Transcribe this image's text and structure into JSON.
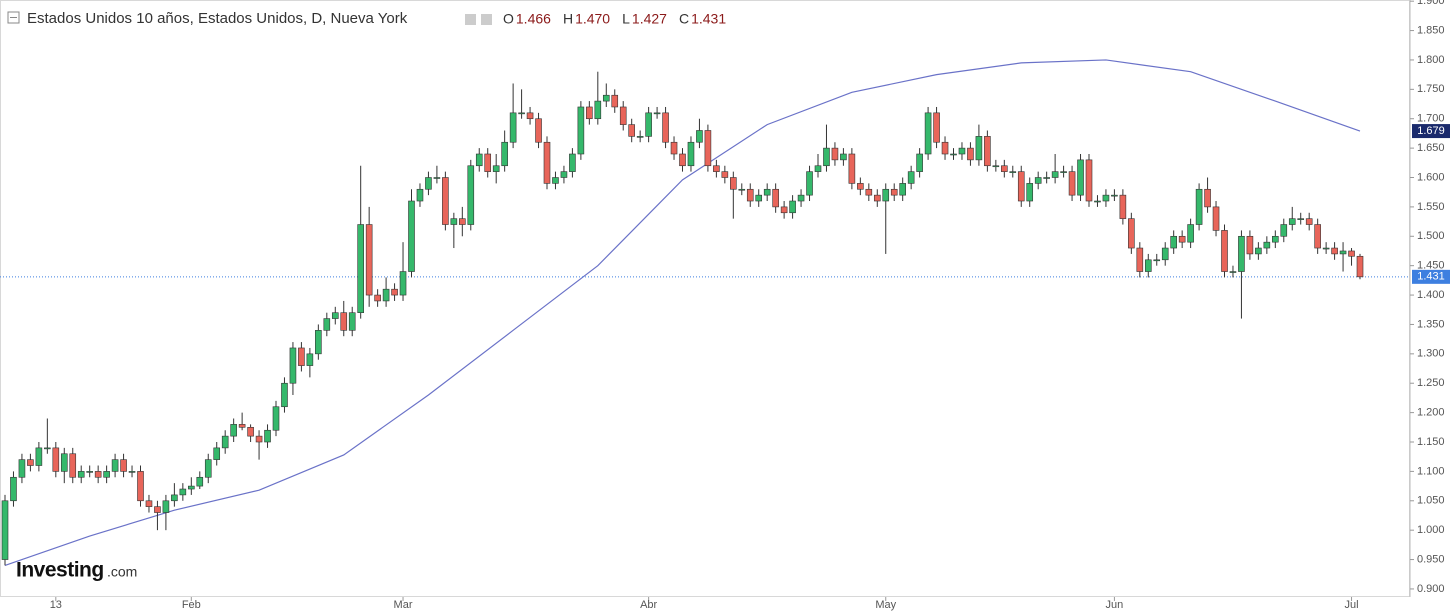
{
  "chart_data": {
    "type": "candlestick",
    "title": "Estados Unidos 10 años, Estados Unidos, D, Nueva York",
    "legend_keys": [
      "O",
      "H",
      "L",
      "C"
    ],
    "legend_values": [
      "1.466",
      "1.470",
      "1.427",
      "1.431"
    ],
    "watermark": "Investing",
    "watermark_suffix": ".com",
    "up_color": "#35b86b",
    "down_color": "#e8655a",
    "ylim": [
      0.888,
      1.902
    ],
    "yticks": [
      {
        "value": 0.9,
        "label": "0.900"
      },
      {
        "value": 0.95,
        "label": "0.950"
      },
      {
        "value": 1.0,
        "label": "1.000"
      },
      {
        "value": 1.05,
        "label": "1.050"
      },
      {
        "value": 1.1,
        "label": "1.100"
      },
      {
        "value": 1.15,
        "label": "1.150"
      },
      {
        "value": 1.2,
        "label": "1.200"
      },
      {
        "value": 1.25,
        "label": "1.250"
      },
      {
        "value": 1.3,
        "label": "1.300"
      },
      {
        "value": 1.35,
        "label": "1.350"
      },
      {
        "value": 1.4,
        "label": "1.400"
      },
      {
        "value": 1.45,
        "label": "1.450"
      },
      {
        "value": 1.5,
        "label": "1.500"
      },
      {
        "value": 1.55,
        "label": "1.550"
      },
      {
        "value": 1.6,
        "label": "1.600"
      },
      {
        "value": 1.65,
        "label": "1.650"
      },
      {
        "value": 1.7,
        "label": "1.700"
      },
      {
        "value": 1.75,
        "label": "1.750"
      },
      {
        "value": 1.8,
        "label": "1.800"
      },
      {
        "value": 1.85,
        "label": "1.850"
      },
      {
        "value": 1.9,
        "label": "1.900"
      }
    ],
    "categories": [
      null,
      null,
      null,
      null,
      null,
      null,
      "13",
      null,
      null,
      null,
      null,
      null,
      null,
      null,
      null,
      null,
      null,
      null,
      null,
      null,
      null,
      null,
      "Feb",
      null,
      null,
      null,
      null,
      null,
      null,
      null,
      null,
      null,
      null,
      null,
      null,
      null,
      null,
      null,
      null,
      null,
      null,
      null,
      null,
      null,
      null,
      null,
      null,
      "Mar",
      null,
      null,
      null,
      null,
      null,
      null,
      null,
      null,
      null,
      null,
      null,
      null,
      null,
      null,
      null,
      null,
      null,
      null,
      null,
      null,
      null,
      null,
      null,
      null,
      null,
      null,
      null,
      null,
      "Abr",
      null,
      null,
      null,
      null,
      null,
      null,
      null,
      null,
      null,
      null,
      null,
      null,
      null,
      null,
      null,
      null,
      null,
      null,
      null,
      null,
      null,
      null,
      null,
      null,
      null,
      null,
      null,
      "May",
      null,
      null,
      null,
      null,
      null,
      null,
      null,
      null,
      null,
      null,
      null,
      null,
      null,
      null,
      null,
      null,
      null,
      null,
      null,
      null,
      null,
      null,
      null,
      null,
      null,
      null,
      "Jun",
      null,
      null,
      null,
      null,
      null,
      null,
      null,
      null,
      null,
      null,
      null,
      null,
      null,
      null,
      null,
      null,
      null,
      null,
      null,
      null,
      null,
      null,
      null,
      null,
      null,
      null,
      null,
      "Jul",
      null
    ],
    "open": [
      0.95,
      1.05,
      1.09,
      1.12,
      1.11,
      1.14,
      1.14,
      1.1,
      1.13,
      1.09,
      1.1,
      1.1,
      1.09,
      1.1,
      1.12,
      1.1,
      1.1,
      1.05,
      1.04,
      1.03,
      1.05,
      1.06,
      1.07,
      1.075,
      1.09,
      1.12,
      1.14,
      1.16,
      1.18,
      1.175,
      1.16,
      1.15,
      1.17,
      1.21,
      1.25,
      1.31,
      1.28,
      1.3,
      1.34,
      1.36,
      1.37,
      1.34,
      1.37,
      1.52,
      1.4,
      1.39,
      1.41,
      1.4,
      1.44,
      1.56,
      1.58,
      1.6,
      1.6,
      1.52,
      1.53,
      1.52,
      1.62,
      1.64,
      1.61,
      1.62,
      1.66,
      1.71,
      1.71,
      1.7,
      1.66,
      1.59,
      1.6,
      1.61,
      1.64,
      1.72,
      1.7,
      1.73,
      1.74,
      1.72,
      1.69,
      1.67,
      1.67,
      1.71,
      1.71,
      1.66,
      1.64,
      1.62,
      1.66,
      1.68,
      1.62,
      1.61,
      1.6,
      1.58,
      1.58,
      1.56,
      1.57,
      1.58,
      1.55,
      1.54,
      1.56,
      1.57,
      1.61,
      1.62,
      1.65,
      1.63,
      1.64,
      1.59,
      1.58,
      1.57,
      1.56,
      1.58,
      1.57,
      1.59,
      1.61,
      1.64,
      1.71,
      1.66,
      1.64,
      1.64,
      1.65,
      1.63,
      1.67,
      1.62,
      1.62,
      1.61,
      1.61,
      1.56,
      1.59,
      1.6,
      1.6,
      1.61,
      1.61,
      1.57,
      1.63,
      1.56,
      1.56,
      1.57,
      1.57,
      1.53,
      1.48,
      1.44,
      1.46,
      1.46,
      1.48,
      1.5,
      1.49,
      1.52,
      1.58,
      1.55,
      1.51,
      1.44,
      1.44,
      1.5,
      1.47,
      1.48,
      1.49,
      1.5,
      1.52,
      1.53,
      1.53,
      1.52,
      1.48,
      1.48,
      1.47,
      1.475,
      1.466
    ],
    "high": [
      1.06,
      1.1,
      1.13,
      1.13,
      1.15,
      1.19,
      1.15,
      1.14,
      1.14,
      1.11,
      1.11,
      1.11,
      1.11,
      1.13,
      1.13,
      1.11,
      1.11,
      1.06,
      1.05,
      1.06,
      1.08,
      1.08,
      1.09,
      1.1,
      1.13,
      1.15,
      1.17,
      1.19,
      1.2,
      1.18,
      1.17,
      1.18,
      1.22,
      1.26,
      1.32,
      1.32,
      1.31,
      1.35,
      1.37,
      1.38,
      1.39,
      1.38,
      1.62,
      1.55,
      1.41,
      1.43,
      1.42,
      1.49,
      1.58,
      1.59,
      1.61,
      1.62,
      1.61,
      1.54,
      1.55,
      1.63,
      1.65,
      1.65,
      1.64,
      1.68,
      1.76,
      1.75,
      1.72,
      1.71,
      1.67,
      1.61,
      1.62,
      1.65,
      1.73,
      1.73,
      1.78,
      1.76,
      1.75,
      1.73,
      1.7,
      1.68,
      1.72,
      1.72,
      1.72,
      1.67,
      1.65,
      1.67,
      1.7,
      1.69,
      1.63,
      1.62,
      1.61,
      1.59,
      1.59,
      1.58,
      1.59,
      1.59,
      1.56,
      1.57,
      1.58,
      1.62,
      1.64,
      1.69,
      1.66,
      1.65,
      1.65,
      1.6,
      1.59,
      1.58,
      1.59,
      1.59,
      1.6,
      1.62,
      1.65,
      1.72,
      1.72,
      1.67,
      1.65,
      1.66,
      1.66,
      1.69,
      1.68,
      1.63,
      1.63,
      1.62,
      1.62,
      1.6,
      1.61,
      1.61,
      1.64,
      1.62,
      1.62,
      1.64,
      1.64,
      1.57,
      1.58,
      1.58,
      1.58,
      1.54,
      1.49,
      1.47,
      1.47,
      1.49,
      1.51,
      1.51,
      1.53,
      1.59,
      1.6,
      1.56,
      1.52,
      1.45,
      1.51,
      1.51,
      1.49,
      1.5,
      1.51,
      1.53,
      1.55,
      1.54,
      1.54,
      1.53,
      1.49,
      1.49,
      1.49,
      1.48,
      1.47
    ],
    "low": [
      0.94,
      1.04,
      1.08,
      1.1,
      1.1,
      1.13,
      1.09,
      1.08,
      1.08,
      1.08,
      1.09,
      1.08,
      1.08,
      1.09,
      1.09,
      1.09,
      1.04,
      1.03,
      1.0,
      1.0,
      1.04,
      1.05,
      1.06,
      1.07,
      1.08,
      1.11,
      1.13,
      1.15,
      1.17,
      1.15,
      1.12,
      1.14,
      1.16,
      1.2,
      1.23,
      1.27,
      1.26,
      1.29,
      1.33,
      1.35,
      1.33,
      1.33,
      1.36,
      1.38,
      1.38,
      1.38,
      1.39,
      1.39,
      1.43,
      1.55,
      1.57,
      1.59,
      1.51,
      1.48,
      1.5,
      1.51,
      1.61,
      1.6,
      1.59,
      1.61,
      1.65,
      1.7,
      1.69,
      1.65,
      1.58,
      1.58,
      1.59,
      1.6,
      1.63,
      1.69,
      1.69,
      1.72,
      1.71,
      1.68,
      1.66,
      1.66,
      1.66,
      1.7,
      1.65,
      1.63,
      1.61,
      1.61,
      1.65,
      1.61,
      1.6,
      1.59,
      1.53,
      1.57,
      1.55,
      1.55,
      1.56,
      1.54,
      1.53,
      1.53,
      1.55,
      1.56,
      1.6,
      1.61,
      1.62,
      1.62,
      1.58,
      1.57,
      1.56,
      1.55,
      1.47,
      1.56,
      1.56,
      1.58,
      1.6,
      1.63,
      1.65,
      1.63,
      1.63,
      1.63,
      1.62,
      1.62,
      1.61,
      1.61,
      1.6,
      1.6,
      1.55,
      1.55,
      1.58,
      1.59,
      1.59,
      1.6,
      1.56,
      1.56,
      1.55,
      1.55,
      1.55,
      1.56,
      1.52,
      1.47,
      1.43,
      1.43,
      1.45,
      1.45,
      1.47,
      1.48,
      1.48,
      1.51,
      1.54,
      1.5,
      1.43,
      1.43,
      1.36,
      1.46,
      1.46,
      1.47,
      1.48,
      1.49,
      1.51,
      1.52,
      1.51,
      1.47,
      1.47,
      1.46,
      1.44,
      1.45,
      1.427
    ],
    "close": [
      1.05,
      1.09,
      1.12,
      1.11,
      1.14,
      1.14,
      1.1,
      1.13,
      1.09,
      1.1,
      1.1,
      1.09,
      1.1,
      1.12,
      1.1,
      1.1,
      1.05,
      1.04,
      1.03,
      1.05,
      1.06,
      1.07,
      1.075,
      1.09,
      1.12,
      1.14,
      1.16,
      1.18,
      1.175,
      1.16,
      1.15,
      1.17,
      1.21,
      1.25,
      1.31,
      1.28,
      1.3,
      1.34,
      1.36,
      1.37,
      1.34,
      1.37,
      1.52,
      1.4,
      1.39,
      1.41,
      1.4,
      1.44,
      1.56,
      1.58,
      1.6,
      1.6,
      1.52,
      1.53,
      1.52,
      1.62,
      1.64,
      1.61,
      1.62,
      1.66,
      1.71,
      1.71,
      1.7,
      1.66,
      1.59,
      1.6,
      1.61,
      1.64,
      1.72,
      1.7,
      1.73,
      1.74,
      1.72,
      1.69,
      1.67,
      1.67,
      1.71,
      1.71,
      1.66,
      1.64,
      1.62,
      1.66,
      1.68,
      1.62,
      1.61,
      1.6,
      1.58,
      1.58,
      1.56,
      1.57,
      1.58,
      1.55,
      1.54,
      1.56,
      1.57,
      1.61,
      1.62,
      1.65,
      1.63,
      1.64,
      1.59,
      1.58,
      1.57,
      1.56,
      1.58,
      1.57,
      1.59,
      1.61,
      1.64,
      1.71,
      1.66,
      1.64,
      1.64,
      1.65,
      1.63,
      1.67,
      1.62,
      1.62,
      1.61,
      1.61,
      1.56,
      1.59,
      1.6,
      1.6,
      1.61,
      1.61,
      1.57,
      1.63,
      1.56,
      1.56,
      1.57,
      1.57,
      1.53,
      1.48,
      1.44,
      1.46,
      1.46,
      1.48,
      1.5,
      1.49,
      1.52,
      1.58,
      1.55,
      1.51,
      1.44,
      1.44,
      1.5,
      1.47,
      1.48,
      1.49,
      1.5,
      1.52,
      1.53,
      1.53,
      1.52,
      1.48,
      1.48,
      1.47,
      1.475,
      1.466,
      1.431
    ],
    "lines": [
      {
        "color": "#6a72c8",
        "x": [
          0,
          10,
          20,
          30,
          40,
          50,
          60,
          70,
          80,
          90,
          100,
          110,
          120,
          130,
          140,
          150,
          160
        ],
        "values": [
          0.94,
          0.99,
          1.034,
          1.068,
          1.128,
          1.23,
          1.34,
          1.45,
          1.596,
          1.69,
          1.745,
          1.775,
          1.795,
          1.8,
          1.78,
          1.73,
          1.679
        ]
      }
    ],
    "ma_box_color": "#1a2a6c",
    "last_box_color": "#3d7fe0"
  }
}
